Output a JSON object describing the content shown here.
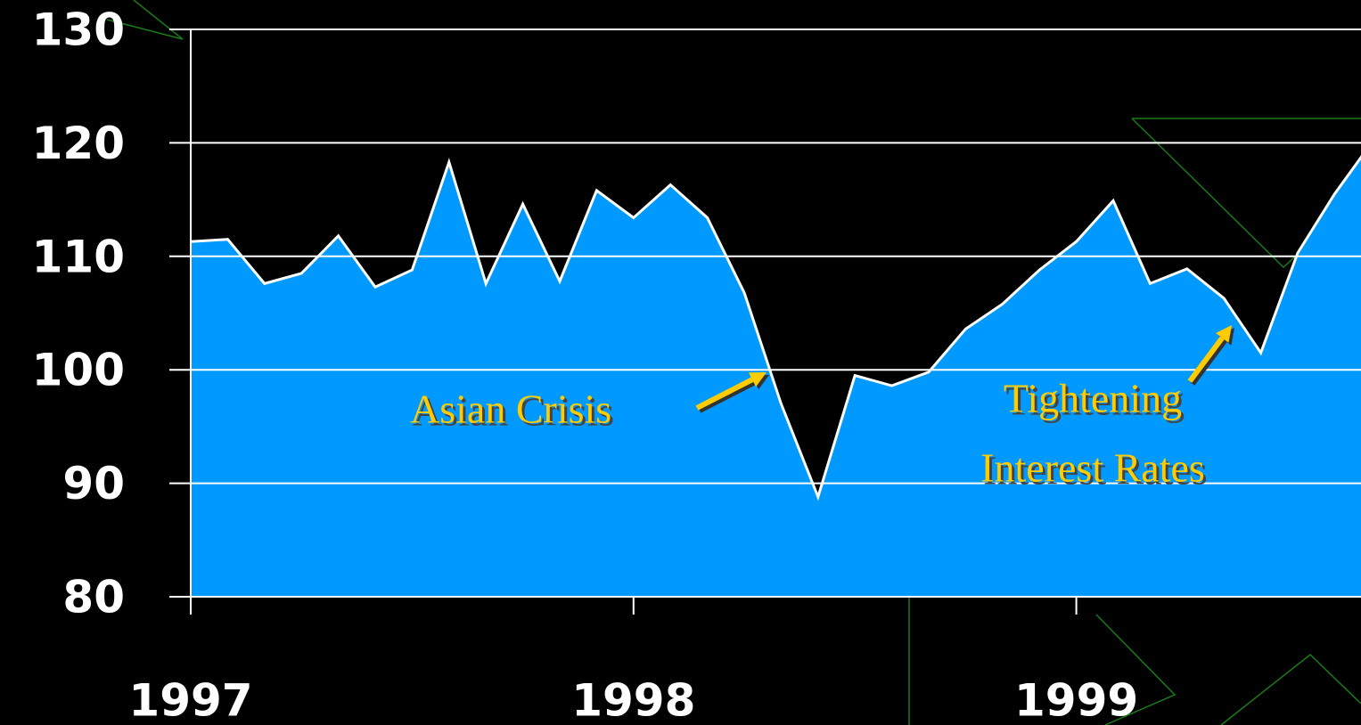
{
  "chart_data": {
    "type": "area",
    "categories": [
      "1997",
      null,
      null,
      null,
      null,
      null,
      null,
      null,
      null,
      null,
      null,
      null,
      "1998",
      null,
      null,
      null,
      null,
      null,
      null,
      null,
      null,
      null,
      null,
      null,
      "1999",
      null,
      null,
      null,
      null,
      null,
      null,
      null,
      null
    ],
    "values": [
      111.3,
      111.5,
      107.6,
      108.5,
      111.8,
      107.3,
      108.8,
      118.3,
      107.6,
      114.6,
      107.8,
      115.8,
      113.4,
      116.3,
      113.4,
      106.8,
      97,
      88.8,
      99.5,
      98.6,
      99.8,
      103.6,
      105.8,
      108.8,
      111.3,
      114.9,
      107.6,
      108.9,
      106.3,
      101.5,
      110.3,
      115.5,
      120
    ],
    "color": "#0099ff",
    "ylim": [
      80,
      130
    ],
    "yticks": [
      80,
      90,
      100,
      110,
      120,
      130
    ],
    "grid": true,
    "annotations": [
      {
        "lines": [
          "Asian Crisis"
        ],
        "index": 15.6
      },
      {
        "lines": [
          "Tightening",
          "Interest Rates"
        ],
        "index": 28.1
      }
    ]
  }
}
